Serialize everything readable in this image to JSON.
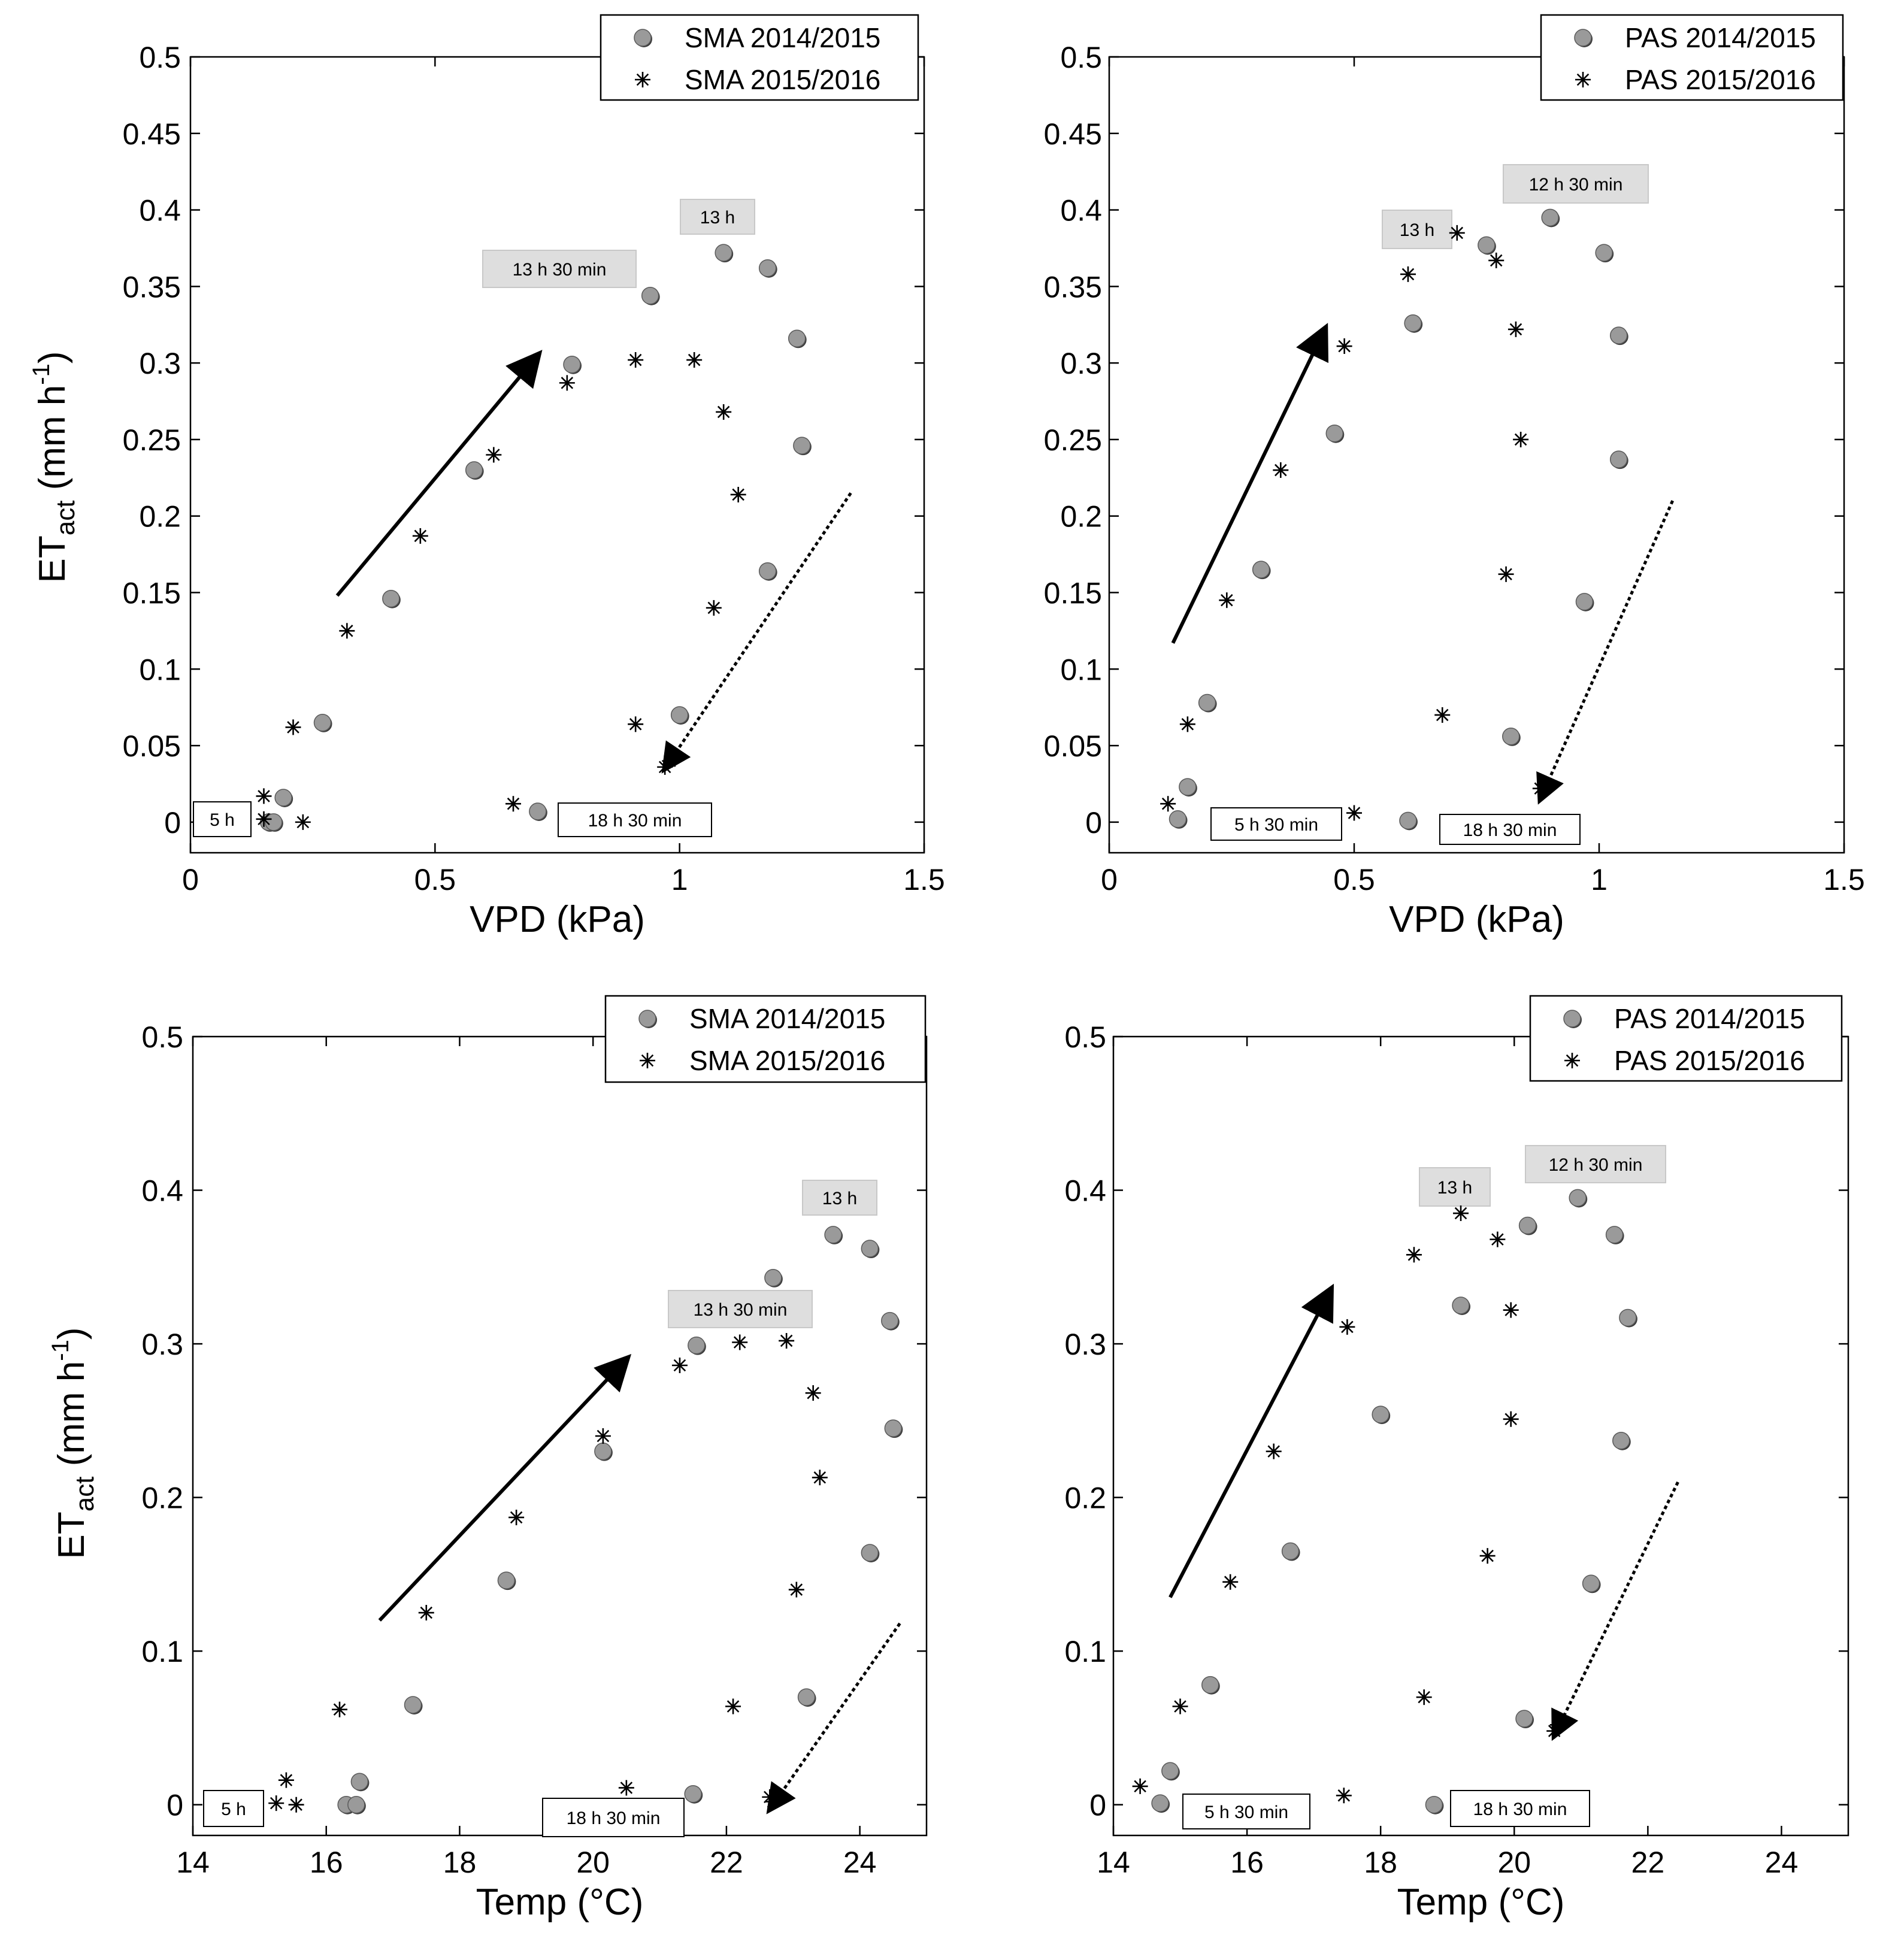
{
  "figure": {
    "ylabel": {
      "base": "ET",
      "sub": "act",
      "unit_open": " (mm h",
      "sup": "-1",
      "unit_close": ")"
    }
  },
  "chart_data": [
    {
      "id": "sma-vpd",
      "type": "scatter",
      "xlabel": "VPD (kPa)",
      "ylabel": "ETact (mm h-1)",
      "xlim": [
        0,
        1.5
      ],
      "ylim": [
        -0.02,
        0.5
      ],
      "xticks": [
        0,
        0.5,
        1,
        1.5
      ],
      "xtick_labels": [
        "0",
        "0.5",
        "1",
        "1.5"
      ],
      "yticks": [
        0,
        0.05,
        0.1,
        0.15,
        0.2,
        0.25,
        0.3,
        0.35,
        0.4,
        0.45,
        0.5
      ],
      "ytick_labels": [
        "0",
        "0.05",
        "0.1",
        "0.15",
        "0.2",
        "0.25",
        "0.3",
        "0.35",
        "0.4",
        "0.45",
        "0.5"
      ],
      "legend_position": "top-right",
      "series": [
        {
          "name": "SMA 2014/2015",
          "marker": "circle",
          "x": [
            0.16,
            0.19,
            0.17,
            0.27,
            0.41,
            0.58,
            0.78,
            0.94,
            1.09,
            1.18,
            1.24,
            1.25,
            1.18,
            1.0,
            0.71
          ],
          "y": [
            0.0,
            0.016,
            0.0,
            0.065,
            0.146,
            0.23,
            0.299,
            0.344,
            0.372,
            0.362,
            0.316,
            0.246,
            0.164,
            0.07,
            0.007
          ]
        },
        {
          "name": "SMA 2015/2016",
          "marker": "asterisk",
          "x": [
            0.15,
            0.15,
            0.23,
            0.21,
            0.32,
            0.47,
            0.62,
            0.77,
            0.91,
            1.03,
            1.09,
            1.12,
            1.07,
            0.91,
            0.66,
            0.98,
            0.97
          ],
          "y": [
            0.017,
            0.002,
            0.0,
            0.062,
            0.125,
            0.187,
            0.24,
            0.287,
            0.302,
            0.302,
            0.268,
            0.214,
            0.14,
            0.064,
            0.012,
            0.04,
            0.036
          ]
        }
      ],
      "annotations": [
        "5 h",
        "13 h 30 min",
        "13 h",
        "18 h 30 min"
      ],
      "arrows": [
        {
          "style": "solid",
          "from": [
            0.3,
            0.148
          ],
          "to": [
            0.71,
            0.305
          ]
        },
        {
          "style": "dotted",
          "from": [
            1.35,
            0.215
          ],
          "to": [
            0.97,
            0.035
          ]
        }
      ]
    },
    {
      "id": "pas-vpd",
      "type": "scatter",
      "xlabel": "VPD (kPa)",
      "ylabel": "ETact (mm h-1)",
      "xlim": [
        0,
        1.5
      ],
      "ylim": [
        -0.02,
        0.5
      ],
      "xticks": [
        0,
        0.5,
        1,
        1.5
      ],
      "xtick_labels": [
        "0",
        "0.5",
        "1",
        "1.5"
      ],
      "yticks": [
        0,
        0.05,
        0.1,
        0.15,
        0.2,
        0.25,
        0.3,
        0.35,
        0.4,
        0.45,
        0.5
      ],
      "ytick_labels": [
        "0",
        "0.05",
        "0.1",
        "0.15",
        "0.2",
        "0.25",
        "0.3",
        "0.35",
        "0.4",
        "0.45",
        "0.5"
      ],
      "legend_position": "top-right",
      "series": [
        {
          "name": "PAS 2014/2015",
          "marker": "circle",
          "x": [
            0.14,
            0.16,
            0.2,
            0.31,
            0.46,
            0.62,
            0.77,
            0.9,
            1.01,
            1.04,
            1.04,
            0.97,
            0.82,
            0.61
          ],
          "y": [
            0.002,
            0.023,
            0.078,
            0.165,
            0.254,
            0.326,
            0.377,
            0.395,
            0.372,
            0.318,
            0.237,
            0.144,
            0.056,
            0.001
          ]
        },
        {
          "name": "PAS 2015/2016",
          "marker": "asterisk",
          "x": [
            0.12,
            0.16,
            0.24,
            0.35,
            0.48,
            0.61,
            0.71,
            0.79,
            0.83,
            0.84,
            0.81,
            0.68,
            0.5,
            0.88,
            0.89
          ],
          "y": [
            0.012,
            0.064,
            0.145,
            0.23,
            0.311,
            0.358,
            0.385,
            0.367,
            0.322,
            0.25,
            0.162,
            0.07,
            0.006,
            0.022,
            0.025
          ]
        }
      ],
      "annotations": [
        "13 h",
        "12 h 30 min",
        "5 h 30 min",
        "18 h 30 min"
      ],
      "arrows": [
        {
          "style": "solid",
          "from": [
            0.13,
            0.117
          ],
          "to": [
            0.44,
            0.322
          ]
        },
        {
          "style": "dotted",
          "from": [
            1.15,
            0.21
          ],
          "to": [
            0.88,
            0.015
          ]
        }
      ]
    },
    {
      "id": "sma-temp",
      "type": "scatter",
      "xlabel": "Temp (°C)",
      "ylabel": "ETact (mm h-1)",
      "xlim": [
        14,
        25
      ],
      "ylim": [
        -0.02,
        0.5
      ],
      "xticks": [
        14,
        16,
        18,
        20,
        22,
        24
      ],
      "xtick_labels": [
        "14",
        "16",
        "18",
        "20",
        "22",
        "24"
      ],
      "yticks": [
        0,
        0.1,
        0.2,
        0.3,
        0.4,
        0.5
      ],
      "ytick_labels": [
        "0",
        "0.1",
        "0.2",
        "0.3",
        "0.4",
        "0.5"
      ],
      "legend_position": "top-right",
      "series": [
        {
          "name": "SMA 2014/2015",
          "marker": "circle",
          "x": [
            16.3,
            16.5,
            16.45,
            17.3,
            18.7,
            20.15,
            21.55,
            22.7,
            23.6,
            24.15,
            24.45,
            24.5,
            24.15,
            23.2,
            21.5
          ],
          "y": [
            0.0,
            0.015,
            0.0,
            0.065,
            0.146,
            0.23,
            0.299,
            0.343,
            0.371,
            0.362,
            0.315,
            0.245,
            0.164,
            0.07,
            0.007
          ]
        },
        {
          "name": "SMA 2015/2016",
          "marker": "asterisk",
          "x": [
            15.25,
            15.4,
            15.55,
            16.2,
            17.5,
            18.85,
            20.15,
            21.3,
            22.2,
            22.9,
            23.3,
            23.4,
            23.05,
            22.1,
            20.5,
            22.65,
            22.7
          ],
          "y": [
            0.001,
            0.016,
            0.0,
            0.062,
            0.125,
            0.187,
            0.24,
            0.286,
            0.301,
            0.302,
            0.268,
            0.213,
            0.14,
            0.064,
            0.011,
            0.005,
            0.002
          ]
        }
      ],
      "annotations": [
        "5 h",
        "13 h",
        "13 h 30 min",
        "18 h 30 min"
      ],
      "arrows": [
        {
          "style": "solid",
          "from": [
            16.8,
            0.12
          ],
          "to": [
            20.5,
            0.29
          ]
        },
        {
          "style": "dotted",
          "from": [
            24.6,
            0.118
          ],
          "to": [
            22.65,
            -0.003
          ]
        }
      ]
    },
    {
      "id": "pas-temp",
      "type": "scatter",
      "xlabel": "Temp (°C)",
      "ylabel": "ETact (mm h-1)",
      "xlim": [
        14,
        25
      ],
      "ylim": [
        -0.02,
        0.5
      ],
      "xticks": [
        14,
        16,
        18,
        20,
        22,
        24
      ],
      "xtick_labels": [
        "14",
        "16",
        "18",
        "20",
        "22",
        "24"
      ],
      "yticks": [
        0,
        0.1,
        0.2,
        0.3,
        0.4,
        0.5
      ],
      "ytick_labels": [
        "0",
        "0.1",
        "0.2",
        "0.3",
        "0.4",
        "0.5"
      ],
      "legend_position": "top-right",
      "series": [
        {
          "name": "PAS 2014/2015",
          "marker": "circle",
          "x": [
            14.7,
            14.85,
            15.45,
            16.65,
            18.0,
            19.2,
            20.2,
            20.95,
            21.5,
            21.7,
            21.6,
            21.15,
            20.15,
            18.8
          ],
          "y": [
            0.001,
            0.022,
            0.078,
            0.165,
            0.254,
            0.325,
            0.377,
            0.395,
            0.371,
            0.317,
            0.237,
            0.144,
            0.056,
            0.0
          ]
        },
        {
          "name": "PAS 2015/2016",
          "marker": "asterisk",
          "x": [
            14.4,
            15.0,
            15.75,
            16.4,
            17.5,
            18.5,
            19.2,
            19.75,
            19.95,
            19.95,
            19.6,
            18.65,
            17.45,
            20.6,
            20.65
          ],
          "y": [
            0.012,
            0.064,
            0.145,
            0.23,
            0.311,
            0.358,
            0.385,
            0.368,
            0.322,
            0.251,
            0.162,
            0.07,
            0.006,
            0.048,
            0.052
          ]
        }
      ],
      "annotations": [
        "13 h",
        "12 h 30 min",
        "5 h 30 min",
        "18 h 30 min"
      ],
      "arrows": [
        {
          "style": "solid",
          "from": [
            14.85,
            0.135
          ],
          "to": [
            17.25,
            0.335
          ]
        },
        {
          "style": "dotted",
          "from": [
            22.45,
            0.21
          ],
          "to": [
            20.6,
            0.045
          ]
        }
      ]
    }
  ]
}
